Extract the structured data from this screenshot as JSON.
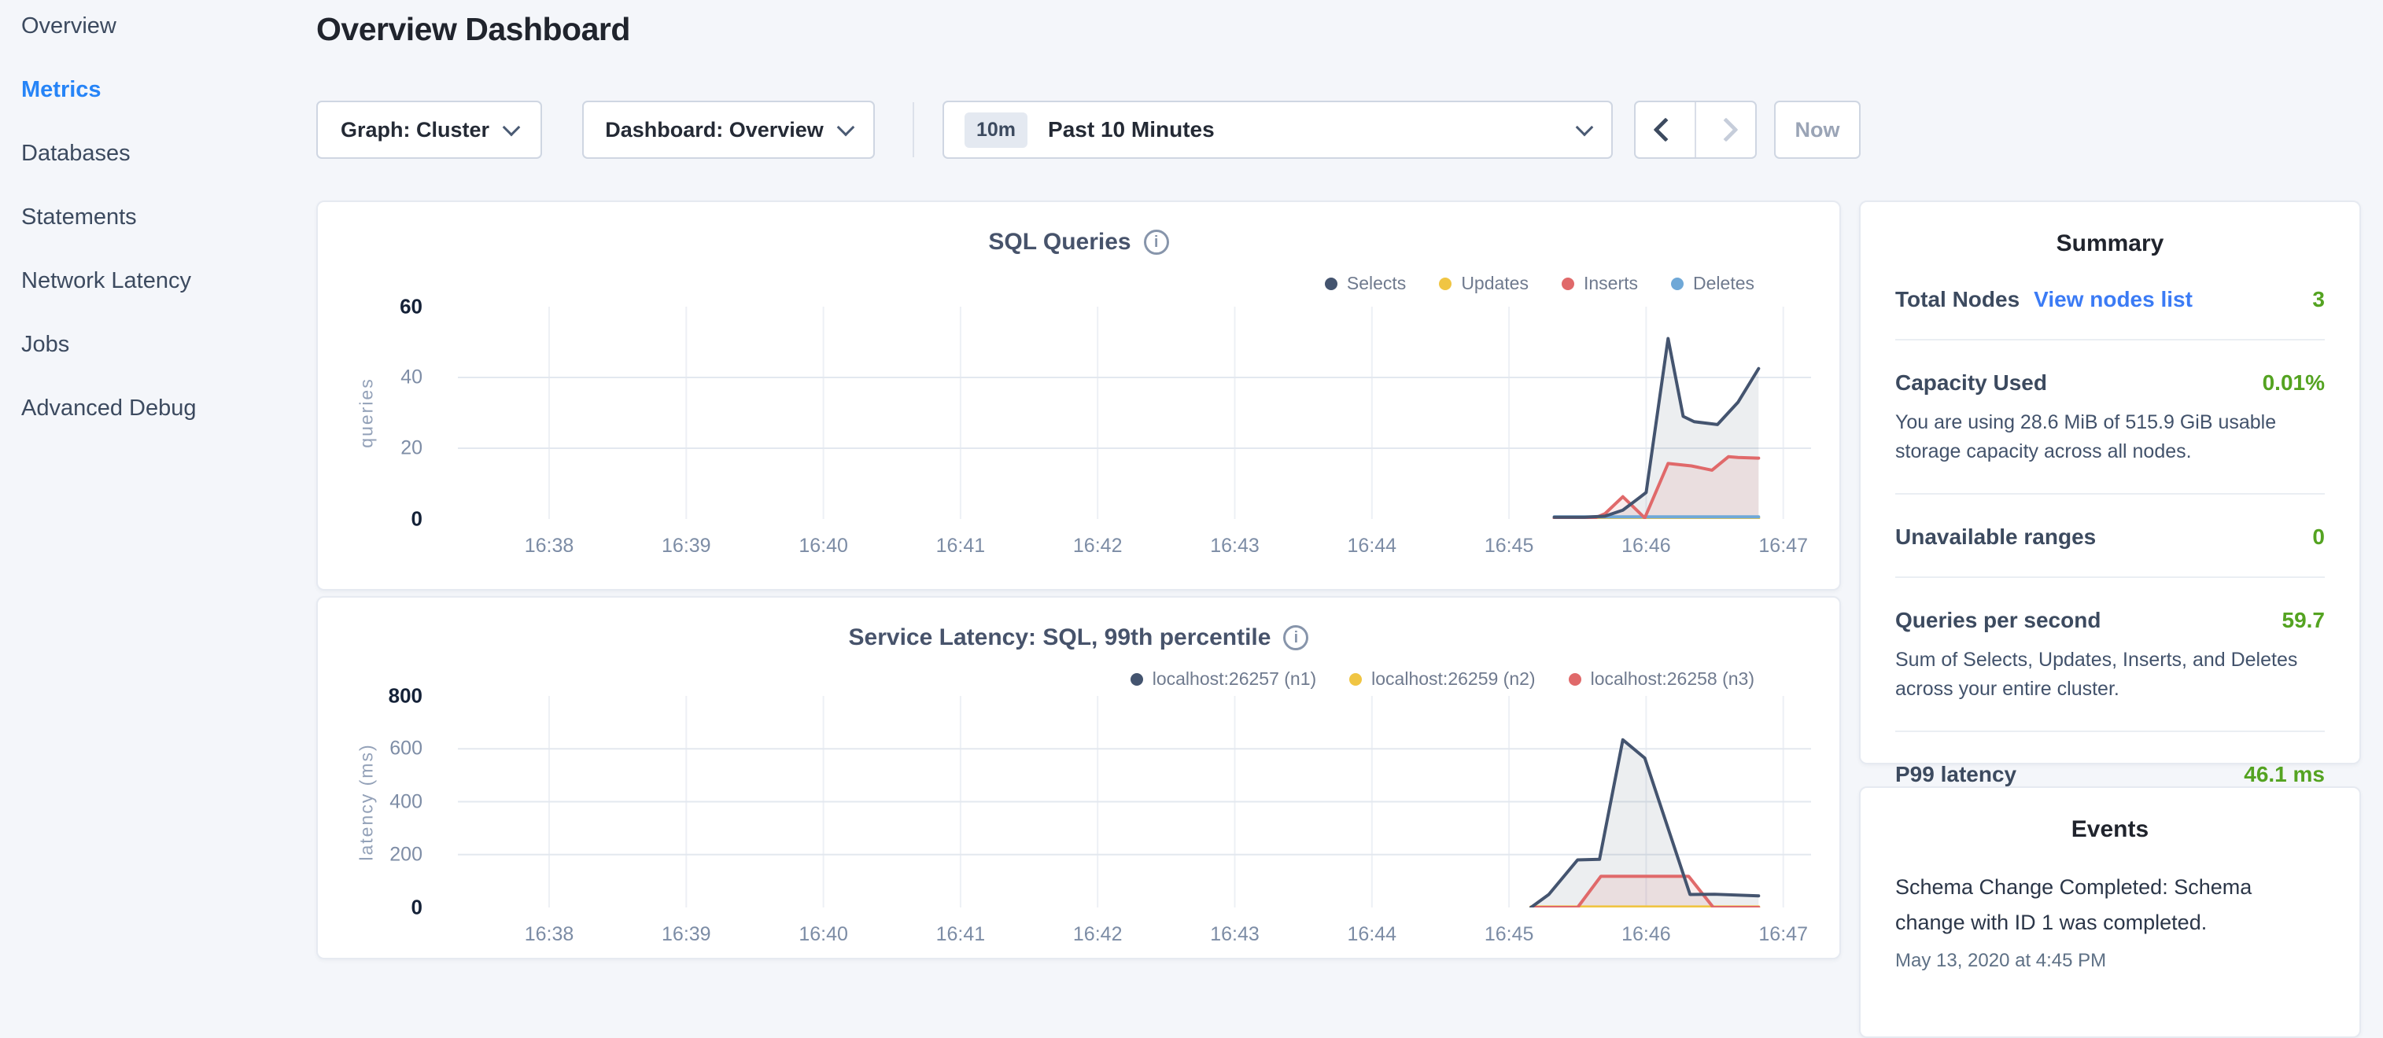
{
  "header": {
    "title": "Overview Dashboard"
  },
  "sidebar": {
    "items": [
      {
        "label": "Overview",
        "active": false
      },
      {
        "label": "Metrics",
        "active": true
      },
      {
        "label": "Databases",
        "active": false
      },
      {
        "label": "Statements",
        "active": false
      },
      {
        "label": "Network Latency",
        "active": false
      },
      {
        "label": "Jobs",
        "active": false
      },
      {
        "label": "Advanced Debug",
        "active": false
      }
    ]
  },
  "toolbar": {
    "graph_dropdown": "Graph: Cluster",
    "dashboard_dropdown": "Dashboard: Overview",
    "time_badge": "10m",
    "time_label": "Past 10 Minutes",
    "now_label": "Now",
    "prev_arrow_enabled": true,
    "next_arrow_enabled": false
  },
  "colors": {
    "accent_blue": "#2684F7",
    "link_blue": "#3B7BF5",
    "value_green": "#54A321",
    "series_navy": "#44546F",
    "series_yellow": "#F0C543",
    "series_red": "#E0696A",
    "series_blue": "#6FA8D7"
  },
  "chart_data": [
    {
      "type": "line",
      "title": "SQL Queries",
      "info_icon": "i",
      "xlabel": "",
      "ylabel": "queries",
      "ylim": [
        0,
        60
      ],
      "yticks": [
        0,
        20,
        40,
        60
      ],
      "xticks": [
        "16:38",
        "16:39",
        "16:40",
        "16:41",
        "16:42",
        "16:43",
        "16:44",
        "16:45",
        "16:46",
        "16:47"
      ],
      "x_unit": "minutes after 16:38",
      "grid": true,
      "legend_position": "top-right",
      "stroke_order": [
        1,
        3,
        2,
        0
      ],
      "series": [
        {
          "name": "Selects",
          "color": "#44546F",
          "fill": "rgba(68,84,111,0.10)",
          "x": [
            7.33,
            7.55,
            7.7,
            7.83,
            7.95,
            8.0,
            8.16,
            8.27,
            8.35,
            8.52,
            8.67,
            8.82
          ],
          "y": [
            0.5,
            0.5,
            0.8,
            2.5,
            6.0,
            7.5,
            51,
            29,
            27.5,
            26.7,
            33,
            42.5
          ]
        },
        {
          "name": "Updates",
          "color": "#F0C543",
          "x": [
            7.33,
            8.82
          ],
          "y": [
            0.3,
            0.3
          ]
        },
        {
          "name": "Inserts",
          "color": "#E0696A",
          "fill": "rgba(224,105,106,0.12)",
          "x": [
            7.33,
            7.62,
            7.7,
            7.83,
            7.99,
            8.16,
            8.33,
            8.48,
            8.6,
            8.67,
            8.82
          ],
          "y": [
            0.2,
            0.2,
            1.5,
            6.3,
            0.3,
            15.7,
            15.0,
            13.8,
            17.6,
            17.4,
            17.2
          ]
        },
        {
          "name": "Deletes",
          "color": "#6FA8D7",
          "x": [
            7.33,
            8.82
          ],
          "y": [
            0.6,
            0.6
          ]
        }
      ]
    },
    {
      "type": "line",
      "title": "Service Latency: SQL, 99th percentile",
      "info_icon": "i",
      "xlabel": "",
      "ylabel": "latency (ms)",
      "ylim": [
        0,
        800
      ],
      "yticks": [
        0,
        200,
        400,
        600,
        800
      ],
      "xticks": [
        "16:38",
        "16:39",
        "16:40",
        "16:41",
        "16:42",
        "16:43",
        "16:44",
        "16:45",
        "16:46",
        "16:47"
      ],
      "x_unit": "minutes after 16:38",
      "grid": true,
      "legend_position": "top-right",
      "stroke_order": [
        1,
        2,
        0
      ],
      "series": [
        {
          "name": "localhost:26257 (n1)",
          "color": "#44546F",
          "fill": "rgba(68,84,111,0.10)",
          "x": [
            7.16,
            7.29,
            7.5,
            7.66,
            7.83,
            7.99,
            8.32,
            8.5,
            8.82
          ],
          "y": [
            0,
            49,
            180,
            182,
            634,
            565,
            49,
            50,
            44
          ]
        },
        {
          "name": "localhost:26259 (n2)",
          "color": "#F0C543",
          "x": [
            7.16,
            8.82
          ],
          "y": [
            2,
            2
          ]
        },
        {
          "name": "localhost:26258 (n3)",
          "color": "#E0696A",
          "fill": "rgba(224,105,106,0.12)",
          "x": [
            7.16,
            7.5,
            7.67,
            8.31,
            8.49,
            8.82
          ],
          "y": [
            0,
            0,
            118,
            118,
            0,
            0
          ]
        }
      ]
    }
  ],
  "summary": {
    "title": "Summary",
    "rows": [
      {
        "label": "Total Nodes",
        "link": "View nodes list",
        "value": "3"
      },
      {
        "label": "Capacity Used",
        "value": "0.01%",
        "desc": "You are using 28.6 MiB of 515.9 GiB usable storage capacity across all nodes."
      },
      {
        "label": "Unavailable ranges",
        "value": "0"
      },
      {
        "label": "Queries per second",
        "value": "59.7",
        "desc": "Sum of Selects, Updates, Inserts, and Deletes across your entire cluster."
      },
      {
        "label": "P99 latency",
        "value": "46.1 ms"
      }
    ]
  },
  "events": {
    "title": "Events",
    "items": [
      {
        "text": "Schema Change Completed: Schema change with ID 1 was completed.",
        "time": "May 13, 2020 at 4:45 PM"
      }
    ]
  }
}
